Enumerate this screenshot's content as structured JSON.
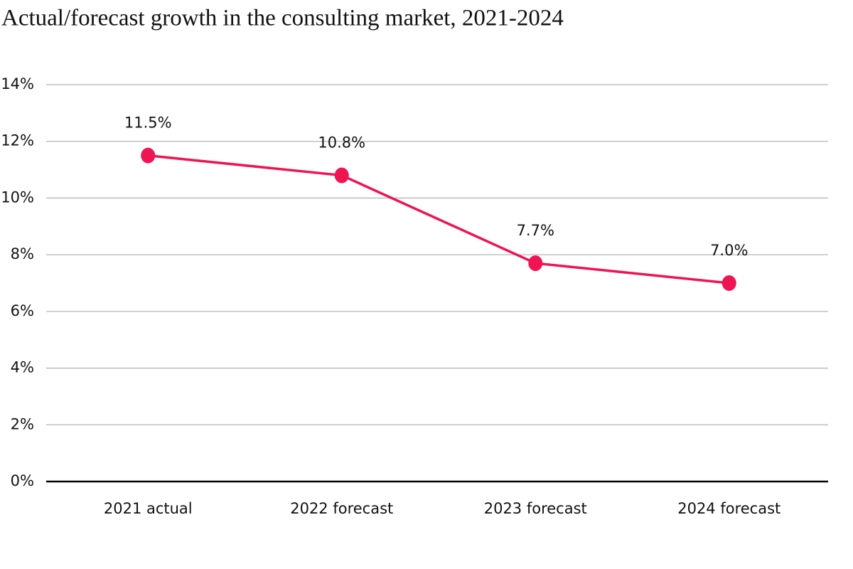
{
  "chart_data": {
    "type": "line",
    "title": "Actual/forecast growth in the consulting market, 2021-2024",
    "categories": [
      "2021 actual",
      "2022 forecast",
      "2023 forecast",
      "2024 forecast"
    ],
    "values": [
      11.5,
      10.8,
      7.7,
      7.0
    ],
    "value_labels": [
      "11.5%",
      "10.8%",
      "7.7%",
      "7.0%"
    ],
    "color": "#ef1452",
    "ylim": [
      0,
      14
    ],
    "yticks": [
      {
        "value": 0,
        "label": "0%"
      },
      {
        "value": 2,
        "label": "2%"
      },
      {
        "value": 4,
        "label": "4%"
      },
      {
        "value": 6,
        "label": "6%"
      },
      {
        "value": 8,
        "label": "8%"
      },
      {
        "value": 10,
        "label": "10%"
      },
      {
        "value": 12,
        "label": "12%"
      },
      {
        "value": 14,
        "label": "14%"
      }
    ],
    "grid": true
  }
}
